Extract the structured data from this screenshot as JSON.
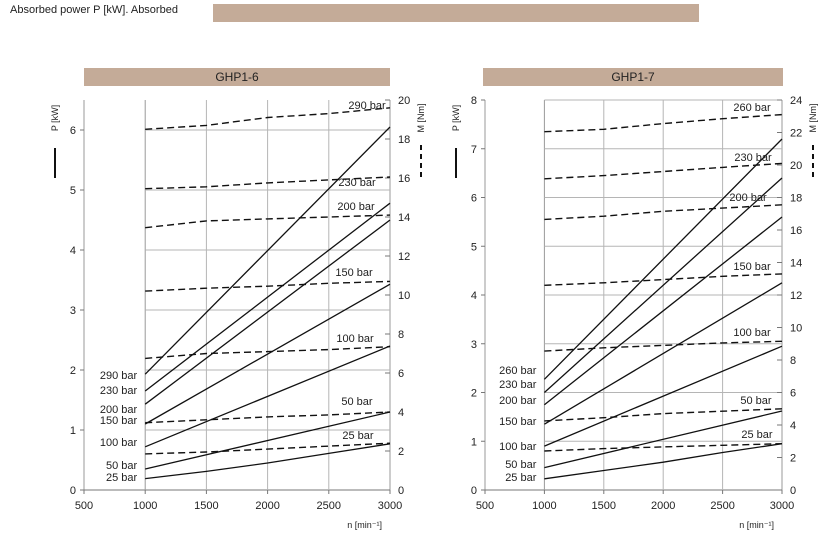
{
  "header": {
    "text": "Absorbed power P [kW].   Absorbed",
    "bar_color": "#c4ab98"
  },
  "chart_data": [
    {
      "type": "line",
      "title": "GHP1-6",
      "xlabel": "n [min⁻¹]",
      "ylabel_left": "P [kW]",
      "ylabel_right": "M [Nm]",
      "xlim": [
        500,
        3000
      ],
      "xticks": [
        "500",
        "1000",
        "1500",
        "2000",
        "2500",
        "3000"
      ],
      "ylim_left": [
        0,
        6.5
      ],
      "yticks_left": [
        "0",
        "1",
        "2",
        "3",
        "4",
        "5",
        "6"
      ],
      "ylim_right": [
        0,
        20
      ],
      "yticks_right": [
        "0",
        "2",
        "4",
        "6",
        "8",
        "10",
        "12",
        "14",
        "16",
        "18",
        "20"
      ],
      "grid": true,
      "power_series": [
        {
          "name": "290 bar",
          "x": [
            1000,
            3000
          ],
          "y": [
            1.93,
            6.05
          ]
        },
        {
          "name": "230 bar",
          "x": [
            1000,
            3000
          ],
          "y": [
            1.65,
            4.78
          ]
        },
        {
          "name": "200 bar",
          "x": [
            1000,
            3000
          ],
          "y": [
            1.43,
            4.5
          ]
        },
        {
          "name": "150 bar",
          "x": [
            1000,
            3000
          ],
          "y": [
            1.1,
            3.43
          ]
        },
        {
          "name": "100 bar",
          "x": [
            1000,
            3000
          ],
          "y": [
            0.72,
            2.4
          ]
        },
        {
          "name": "50 bar",
          "x": [
            1000,
            3000
          ],
          "y": [
            0.35,
            1.3
          ]
        },
        {
          "name": "25 bar",
          "x": [
            1000,
            1500,
            2000,
            2500,
            3000
          ],
          "y": [
            0.19,
            0.31,
            0.45,
            0.61,
            0.77
          ]
        }
      ],
      "torque_series": [
        {
          "name": "290 bar",
          "x": [
            1000,
            1500,
            2000,
            2500,
            3000
          ],
          "y": [
            18.5,
            18.7,
            19.1,
            19.3,
            19.6
          ]
        },
        {
          "name": "230 bar",
          "x": [
            1000,
            1500,
            2000,
            2500,
            3000
          ],
          "y": [
            15.45,
            15.55,
            15.75,
            15.9,
            16.05
          ]
        },
        {
          "name": "200 bar",
          "x": [
            1000,
            1500,
            2000,
            2500,
            3000
          ],
          "y": [
            13.45,
            13.8,
            13.9,
            14.0,
            14.1
          ]
        },
        {
          "name": "150 bar",
          "x": [
            1000,
            1500,
            2000,
            2500,
            3000
          ],
          "y": [
            10.2,
            10.35,
            10.45,
            10.6,
            10.7
          ]
        },
        {
          "name": "100 bar",
          "x": [
            1000,
            1500,
            2000,
            2500,
            3000
          ],
          "y": [
            6.75,
            7.0,
            7.1,
            7.2,
            7.35
          ]
        },
        {
          "name": "50 bar",
          "x": [
            1000,
            1500,
            2000,
            2500,
            3000
          ],
          "y": [
            3.45,
            3.6,
            3.75,
            3.85,
            4.0
          ]
        },
        {
          "name": "25 bar",
          "x": [
            1000,
            1500,
            2000,
            2500,
            3000
          ],
          "y": [
            1.85,
            1.95,
            2.1,
            2.25,
            2.4
          ]
        }
      ],
      "left_labels": [
        "290 bar",
        "230 bar",
        "200 bar",
        "150 bar",
        "100 bar",
        "50 bar",
        "25 bar"
      ],
      "right_labels": [
        "290 bar",
        "230 bar",
        "200 bar",
        "150 bar",
        "100 bar",
        "50 bar",
        "25 bar"
      ]
    },
    {
      "type": "line",
      "title": "GHP1-7",
      "xlabel": "n [min⁻¹]",
      "ylabel_left": "P [kW]",
      "ylabel_right": "M [Nm]",
      "xlim": [
        500,
        3000
      ],
      "xticks": [
        "500",
        "1000",
        "1500",
        "2000",
        "2500",
        "3000"
      ],
      "ylim_left": [
        0,
        8
      ],
      "yticks_left": [
        "0",
        "1",
        "2",
        "3",
        "4",
        "5",
        "6",
        "7",
        "8"
      ],
      "ylim_right": [
        0,
        24
      ],
      "yticks_right": [
        "0",
        "2",
        "4",
        "6",
        "8",
        "10",
        "12",
        "14",
        "16",
        "18",
        "20",
        "22",
        "24"
      ],
      "grid": true,
      "power_series": [
        {
          "name": "260 bar",
          "x": [
            1000,
            3000
          ],
          "y": [
            2.27,
            7.2
          ]
        },
        {
          "name": "230 bar",
          "x": [
            1000,
            3000
          ],
          "y": [
            2.0,
            6.4
          ]
        },
        {
          "name": "200 bar",
          "x": [
            1000,
            3000
          ],
          "y": [
            1.75,
            5.6
          ]
        },
        {
          "name": "150 bar",
          "x": [
            1000,
            3000
          ],
          "y": [
            1.35,
            4.25
          ]
        },
        {
          "name": "100 bar",
          "x": [
            1000,
            3000
          ],
          "y": [
            0.9,
            2.95
          ]
        },
        {
          "name": "50 bar",
          "x": [
            1000,
            3000
          ],
          "y": [
            0.46,
            1.62
          ]
        },
        {
          "name": "25 bar",
          "x": [
            1000,
            1500,
            2000,
            2500,
            3000
          ],
          "y": [
            0.23,
            0.4,
            0.57,
            0.77,
            0.95
          ]
        }
      ],
      "torque_series": [
        {
          "name": "260 bar",
          "x": [
            1000,
            1500,
            2000,
            2500,
            3000
          ],
          "y": [
            22.05,
            22.2,
            22.55,
            22.85,
            23.1
          ]
        },
        {
          "name": "230 bar",
          "x": [
            1000,
            1500,
            2000,
            2500,
            3000
          ],
          "y": [
            19.15,
            19.35,
            19.6,
            19.85,
            20.1
          ]
        },
        {
          "name": "200 bar",
          "x": [
            1000,
            1500,
            2000,
            2500,
            3000
          ],
          "y": [
            16.65,
            16.85,
            17.15,
            17.35,
            17.55
          ]
        },
        {
          "name": "150 bar",
          "x": [
            1000,
            1500,
            2000,
            2500,
            3000
          ],
          "y": [
            12.6,
            12.75,
            12.95,
            13.15,
            13.3
          ]
        },
        {
          "name": "100 bar",
          "x": [
            1000,
            1500,
            2000,
            2500,
            3000
          ],
          "y": [
            8.55,
            8.75,
            8.9,
            9.05,
            9.15
          ]
        },
        {
          "name": "50 bar",
          "x": [
            1000,
            1500,
            2000,
            2500,
            3000
          ],
          "y": [
            4.25,
            4.45,
            4.7,
            4.85,
            5.0
          ]
        },
        {
          "name": "25 bar",
          "x": [
            1000,
            1500,
            2000,
            2500,
            3000
          ],
          "y": [
            2.4,
            2.55,
            2.65,
            2.75,
            2.85
          ]
        }
      ],
      "left_labels": [
        "260 bar",
        "230 bar",
        "200 bar",
        "150 bar",
        "100 bar",
        "50 bar",
        "25 bar"
      ],
      "right_labels": [
        "260 bar",
        "230 bar",
        "200 bar",
        "150 bar",
        "100 bar",
        "50 bar",
        "25 bar"
      ]
    }
  ]
}
